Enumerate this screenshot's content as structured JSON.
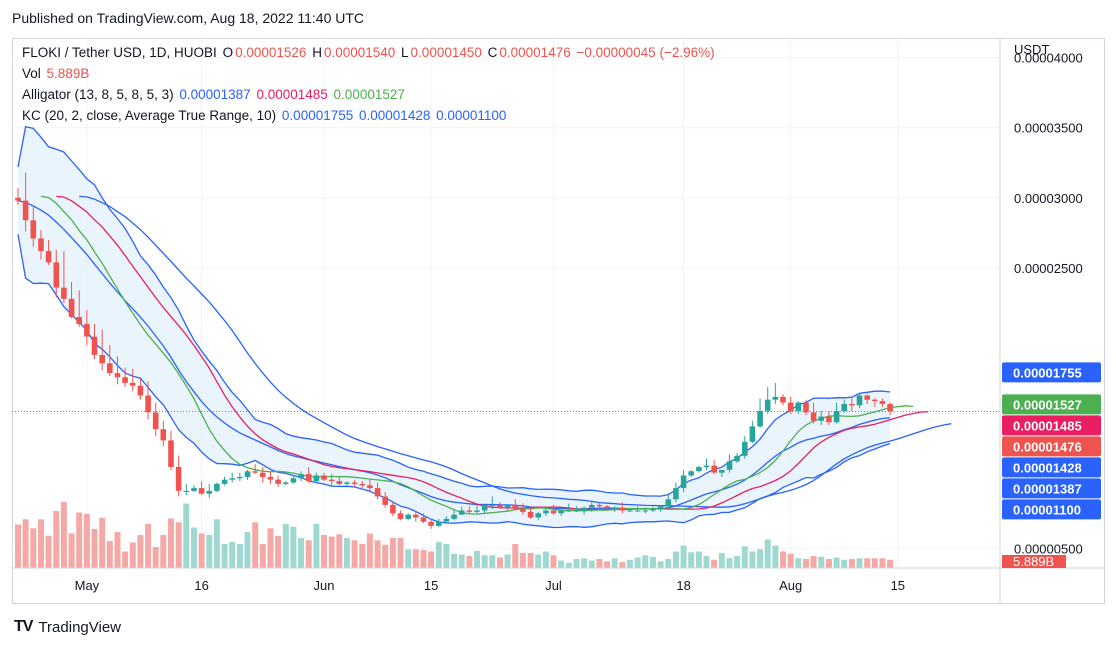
{
  "publish_line": "Published on TradingView.com, Aug 18, 2022 11:40 UTC",
  "legend": {
    "symbol": "FLOKI / Tether USD, 1D, HUOBI",
    "o_label": "O",
    "o_val": "0.00001526",
    "h_label": "H",
    "h_val": "0.00001540",
    "l_label": "L",
    "l_val": "0.00001450",
    "c_label": "C",
    "c_val": "0.00001476",
    "change": "−0.00000045 (−2.96%)",
    "vol_label": "Vol",
    "vol_val": "5.889B",
    "alligator_label": "Alligator (13, 8, 5, 8, 5, 3)",
    "alligator_jaw": "0.00001387",
    "alligator_teeth": "0.00001485",
    "alligator_lips": "0.00001527",
    "kc_label": "KC (20, 2, close, Average True Range, 10)",
    "kc_upper": "0.00001755",
    "kc_mid": "0.00001428",
    "kc_lower": "0.00001100"
  },
  "footer": {
    "logo": "TV",
    "brand": "TradingView"
  },
  "colors": {
    "up": "#26a69a",
    "down": "#ef5350",
    "kc": "#2962ff",
    "jaw": "#2962ff",
    "teeth": "#e91e63",
    "lips": "#4caf50",
    "band_fill": "#e3f0fb"
  },
  "chart_data": {
    "type": "candlestick",
    "y_axis_unit": "USDT",
    "y_ticks": [
      "0.00000500",
      "0.00002500",
      "0.00003000",
      "0.00003500",
      "0.00004000"
    ],
    "ylim": [
      3.6e-06,
      4.14e-05
    ],
    "x_ticks": [
      {
        "label": "May",
        "day": 9
      },
      {
        "label": "16",
        "day": 24
      },
      {
        "label": "Jun",
        "day": 40
      },
      {
        "label": "15",
        "day": 54
      },
      {
        "label": "Jul",
        "day": 70
      },
      {
        "label": "18",
        "day": 87
      },
      {
        "label": "Aug",
        "day": 101
      },
      {
        "label": "15",
        "day": 115
      }
    ],
    "price_labels": [
      {
        "text": "0.00001755",
        "value": 1.755e-05,
        "color": "#2962ff"
      },
      {
        "text": "0.00001527",
        "value": 1.527e-05,
        "color": "#4caf50"
      },
      {
        "text": "0.00001485",
        "value": 1.485e-05,
        "color": "#e91e63"
      },
      {
        "text": "0.00001476",
        "value": 1.476e-05,
        "color": "#ef5350"
      },
      {
        "text": "0.00001428",
        "value": 1.428e-05,
        "color": "#2962ff"
      },
      {
        "text": "0.00001387",
        "value": 1.387e-05,
        "color": "#2962ff"
      },
      {
        "text": "0.00001100",
        "value": 1.1e-05,
        "color": "#2962ff"
      }
    ],
    "last_price": 1.476e-05,
    "volume_label": "5.889B",
    "close": [
      2.98e-05,
      2.84e-05,
      2.71e-05,
      2.62e-05,
      2.54e-05,
      2.36e-05,
      2.28e-05,
      2.15e-05,
      2.1e-05,
      2.01e-05,
      1.88e-05,
      1.82e-05,
      1.75e-05,
      1.72e-05,
      1.68e-05,
      1.66e-05,
      1.59e-05,
      1.47e-05,
      1.35e-05,
      1.27e-05,
      1.08e-05,
      9.1e-06,
      9.1e-06,
      9.3e-06,
      8.9e-06,
      9.1e-06,
      9.6e-06,
      9.9e-06,
      1e-05,
      1.01e-05,
      1.05e-05,
      1.04e-05,
      1.01e-05,
      9.9e-06,
      9.6e-06,
      9.7e-06,
      1e-05,
      1.03e-05,
      9.8e-06,
      1.02e-05,
      9.9e-06,
      9.8e-06,
      9.6e-06,
      9.7e-06,
      9.6e-06,
      9.5e-06,
      9.3e-06,
      8.7e-06,
      8.1e-06,
      7.5e-06,
      7.1e-06,
      7.4e-06,
      7.2e-06,
      6.9e-06,
      6.6e-06,
      6.9e-06,
      7.1e-06,
      7.4e-06,
      7.7e-06,
      7.6e-06,
      7.7e-06,
      8.1e-06,
      8.1e-06,
      7.9e-06,
      8.1e-06,
      7.8e-06,
      7.6e-06,
      7.2e-06,
      7.5e-06,
      7.7e-06,
      7.5e-06,
      7.7e-06,
      7.7e-06,
      7.7e-06,
      7.9e-06,
      8.1e-06,
      8e-06,
      7.9e-06,
      7.9e-06,
      7.7e-06,
      7.7e-06,
      7.7e-06,
      7.7e-06,
      7.8e-06,
      8e-06,
      8.5e-06,
      9.3e-06,
      1.02e-05,
      1.05e-05,
      1.08e-05,
      1.09e-05,
      1.04e-05,
      1.06e-05,
      1.12e-05,
      1.16e-05,
      1.26e-05,
      1.37e-05,
      1.48e-05,
      1.56e-05,
      1.58e-05,
      1.54e-05,
      1.48e-05,
      1.54e-05,
      1.47e-05,
      1.41e-05,
      1.44e-05,
      1.4e-05,
      1.48e-05,
      1.53e-05,
      1.52e-05,
      1.59e-05,
      1.56e-05,
      1.55e-05,
      1.53e-05,
      1.48e-05
    ],
    "open": [
      3e-05,
      2.98e-05,
      2.84e-05,
      2.71e-05,
      2.62e-05,
      2.54e-05,
      2.36e-05,
      2.28e-05,
      2.15e-05,
      2.1e-05,
      2.01e-05,
      1.88e-05,
      1.82e-05,
      1.75e-05,
      1.72e-05,
      1.68e-05,
      1.66e-05,
      1.59e-05,
      1.47e-05,
      1.35e-05,
      1.27e-05,
      1.08e-05,
      9.1e-06,
      9.1e-06,
      9.3e-06,
      8.9e-06,
      9.1e-06,
      9.6e-06,
      9.9e-06,
      1e-05,
      1.01e-05,
      1.05e-05,
      1.04e-05,
      1.01e-05,
      9.9e-06,
      9.6e-06,
      9.7e-06,
      1e-05,
      1.03e-05,
      9.8e-06,
      1.02e-05,
      9.9e-06,
      9.8e-06,
      9.6e-06,
      9.7e-06,
      9.6e-06,
      9.5e-06,
      9.3e-06,
      8.7e-06,
      8.1e-06,
      7.5e-06,
      7.1e-06,
      7.4e-06,
      7.2e-06,
      6.9e-06,
      6.6e-06,
      6.9e-06,
      7.1e-06,
      7.4e-06,
      7.7e-06,
      7.6e-06,
      7.7e-06,
      8.1e-06,
      8.1e-06,
      7.9e-06,
      8.1e-06,
      7.8e-06,
      7.6e-06,
      7.2e-06,
      7.5e-06,
      7.7e-06,
      7.5e-06,
      7.7e-06,
      7.7e-06,
      7.7e-06,
      7.9e-06,
      8.1e-06,
      8e-06,
      7.9e-06,
      7.9e-06,
      7.7e-06,
      7.7e-06,
      7.7e-06,
      7.7e-06,
      7.8e-06,
      8e-06,
      8.5e-06,
      9.3e-06,
      1.02e-05,
      1.05e-05,
      1.08e-05,
      1.09e-05,
      1.04e-05,
      1.06e-05,
      1.12e-05,
      1.16e-05,
      1.26e-05,
      1.37e-05,
      1.48e-05,
      1.56e-05,
      1.58e-05,
      1.54e-05,
      1.48e-05,
      1.54e-05,
      1.47e-05,
      1.41e-05,
      1.44e-05,
      1.4e-05,
      1.48e-05,
      1.53e-05,
      1.52e-05,
      1.59e-05,
      1.56e-05,
      1.55e-05,
      1.53e-05
    ],
    "high": [
      3.07e-05,
      3.18e-05,
      2.94e-05,
      2.77e-05,
      2.7e-05,
      2.63e-05,
      2.62e-05,
      2.4e-05,
      2.34e-05,
      2.2e-05,
      2.1e-05,
      2.06e-05,
      1.95e-05,
      1.87e-05,
      1.79e-05,
      1.78e-05,
      1.71e-05,
      1.69e-05,
      1.54e-05,
      1.41e-05,
      1.34e-05,
      1.16e-05,
      9.6e-06,
      9.5e-06,
      9.8e-06,
      9.6e-06,
      9.7e-06,
      1.01e-05,
      1.04e-05,
      1.04e-05,
      1.06e-05,
      1.1e-05,
      1.08e-05,
      1.05e-05,
      1.02e-05,
      9.8e-06,
      1.02e-05,
      1.05e-05,
      1.08e-05,
      1.04e-05,
      1.04e-05,
      1.03e-05,
      1.01e-05,
      9.8e-06,
      9.9e-06,
      9.8e-06,
      9.9e-06,
      9.7e-06,
      9e-06,
      8.4e-06,
      7.7e-06,
      7.5e-06,
      7.7e-06,
      7.5e-06,
      7.1e-06,
      7.1e-06,
      7.3e-06,
      7.8e-06,
      8e-06,
      8e-06,
      8.1e-06,
      8.2e-06,
      8.7e-06,
      8.3e-06,
      8e-06,
      8.5e-06,
      8.2e-06,
      7.9e-06,
      7.6e-06,
      8e-06,
      8.1e-06,
      7.9e-06,
      8.2e-06,
      8e-06,
      8e-06,
      8.3e-06,
      8.2e-06,
      8.1e-06,
      8e-06,
      8.3e-06,
      7.8e-06,
      8e-06,
      7.9e-06,
      8e-06,
      8.1e-06,
      8.8e-06,
      9.7e-06,
      1.06e-05,
      1.06e-05,
      1.09e-05,
      1.14e-05,
      1.13e-05,
      1.06e-05,
      1.17e-05,
      1.18e-05,
      1.3e-05,
      1.41e-05,
      1.57e-05,
      1.65e-05,
      1.68e-05,
      1.6e-05,
      1.58e-05,
      1.55e-05,
      1.56e-05,
      1.54e-05,
      1.48e-05,
      1.48e-05,
      1.54e-05,
      1.56e-05,
      1.57e-05,
      1.61e-05,
      1.6e-05,
      1.57e-05,
      1.57e-05,
      1.54e-05
    ],
    "low": [
      2.95e-05,
      2.76e-05,
      2.65e-05,
      2.56e-05,
      2.52e-05,
      2.29e-05,
      2.25e-05,
      2.14e-05,
      2.08e-05,
      1.95e-05,
      1.85e-05,
      1.77e-05,
      1.73e-05,
      1.67e-05,
      1.65e-05,
      1.62e-05,
      1.56e-05,
      1.42e-05,
      1.3e-05,
      1.23e-05,
      1.06e-05,
      8.7e-06,
      8.8e-06,
      9e-06,
      8.8e-06,
      8.6e-06,
      9e-06,
      9.5e-06,
      9.7e-06,
      9.8e-06,
      9.9e-06,
      1.03e-05,
      9.7e-06,
      9.6e-06,
      9.4e-06,
      9.5e-06,
      9.6e-06,
      9.8e-06,
      9.7e-06,
      9.7e-06,
      9.8e-06,
      9.5e-06,
      9.5e-06,
      9.5e-06,
      9.4e-06,
      9.3e-06,
      9.1e-06,
      8.5e-06,
      7.9e-06,
      7.3e-06,
      7e-06,
      7e-06,
      6.9e-06,
      6.8e-06,
      6.4e-06,
      6.5e-06,
      6.8e-06,
      7e-06,
      7.4e-06,
      7.5e-06,
      7.5e-06,
      7.5e-06,
      7.8e-06,
      7.8e-06,
      7.7e-06,
      7.7e-06,
      7.4e-06,
      7.1e-06,
      7e-06,
      7.3e-06,
      7.4e-06,
      7.3e-06,
      7.6e-06,
      7.6e-06,
      7.4e-06,
      7.6e-06,
      7.8e-06,
      7.8e-06,
      7.6e-06,
      7.5e-06,
      7.6e-06,
      7.6e-06,
      7.5e-06,
      7.6e-06,
      7.6e-06,
      7.9e-06,
      8.3e-06,
      9e-06,
      1.01e-05,
      1.04e-05,
      1.06e-05,
      1.03e-05,
      1.01e-05,
      1.04e-05,
      1.11e-05,
      1.14e-05,
      1.25e-05,
      1.36e-05,
      1.46e-05,
      1.53e-05,
      1.52e-05,
      1.46e-05,
      1.46e-05,
      1.45e-05,
      1.39e-05,
      1.38e-05,
      1.38e-05,
      1.39e-05,
      1.47e-05,
      1.48e-05,
      1.5e-05,
      1.53e-05,
      1.51e-05,
      1.51e-05,
      1.45e-05
    ],
    "volume_scale_max": 200,
    "volume": [
      58,
      65,
      53,
      65,
      43,
      76,
      88,
      46,
      74,
      72,
      52,
      67,
      36,
      48,
      22,
      34,
      44,
      59,
      28,
      44,
      66,
      61,
      86,
      54,
      46,
      44,
      65,
      32,
      35,
      32,
      48,
      61,
      32,
      53,
      43,
      59,
      55,
      40,
      37,
      59,
      44,
      42,
      45,
      40,
      37,
      32,
      46,
      37,
      31,
      40,
      40,
      25,
      25,
      24,
      22,
      35,
      32,
      19,
      18,
      16,
      23,
      17,
      17,
      14,
      18,
      32,
      20,
      20,
      18,
      22,
      17,
      10,
      7,
      12,
      13,
      10,
      12,
      9,
      13,
      8,
      11,
      14,
      17,
      15,
      9,
      12,
      22,
      30,
      21,
      22,
      16,
      11,
      20,
      13,
      16,
      29,
      22,
      25,
      38,
      30,
      22,
      19,
      13,
      12,
      16,
      15,
      12,
      14,
      11,
      12,
      13,
      13,
      13,
      13,
      11
    ]
  }
}
